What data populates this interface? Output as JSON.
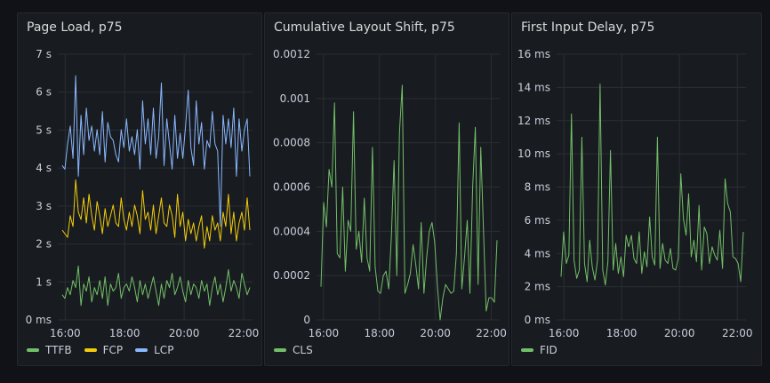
{
  "colors": {
    "TTFB": "#73bf69",
    "FCP": "#f2cc0c",
    "LCP": "#8ab8ff",
    "CLS": "#73bf69",
    "FID": "#73bf69"
  },
  "panels": [
    {
      "title": "Page Load, p75",
      "chart_data": {
        "type": "line",
        "x_tick_labels": [
          "16:00",
          "18:00",
          "20:00",
          "22:00"
        ],
        "x_ticks_hours": [
          16,
          18,
          20,
          22
        ],
        "xlim_hours": [
          15.75,
          22.3
        ],
        "y_tick_labels": [
          "0 ms",
          "1 s",
          "2 s",
          "3 s",
          "4 s",
          "5 s",
          "6 s",
          "7 s"
        ],
        "ylim": [
          0,
          7.4
        ],
        "y_unit": "s",
        "grid": true,
        "legend_position": "bottom-left",
        "series": [
          {
            "name": "TTFB",
            "color_key": "TTFB",
            "values": [
              0.7,
              0.6,
              0.9,
              0.7,
              1.1,
              0.9,
              1.5,
              0.4,
              1.0,
              0.8,
              1.2,
              0.5,
              0.9,
              0.7,
              1.1,
              0.6,
              1.2,
              0.4,
              1.0,
              0.8,
              0.9,
              1.3,
              0.6,
              0.9,
              1.0,
              0.8,
              1.2,
              0.9,
              0.5,
              1.1,
              0.7,
              1.0,
              0.6,
              0.9,
              1.2,
              0.8,
              0.4,
              1.0,
              0.6,
              1.1,
              0.9,
              1.3,
              0.7,
              0.9,
              1.2,
              0.8,
              0.5,
              1.1,
              0.7,
              1.0,
              0.9,
              0.6,
              1.1,
              0.8,
              1.0,
              0.4,
              0.9,
              1.2,
              0.7,
              1.0,
              0.5,
              0.9,
              1.4,
              0.8,
              1.1,
              0.9,
              0.6,
              1.3,
              1.0,
              0.7,
              0.9
            ]
          },
          {
            "name": "FCP",
            "color_key": "FCP",
            "values": [
              2.5,
              2.4,
              2.3,
              2.9,
              2.6,
              3.9,
              3.0,
              2.8,
              3.4,
              2.7,
              3.5,
              2.9,
              2.5,
              3.3,
              2.9,
              2.4,
              3.1,
              2.6,
              2.9,
              3.2,
              2.7,
              2.6,
              3.4,
              2.8,
              2.5,
              3.0,
              2.6,
              3.2,
              2.9,
              2.4,
              3.6,
              2.8,
              3.0,
              2.5,
              3.2,
              2.4,
              2.9,
              3.4,
              2.7,
              2.6,
              3.2,
              2.9,
              2.3,
              3.5,
              2.6,
              3.0,
              2.2,
              2.8,
              2.4,
              2.7,
              2.2,
              2.6,
              2.9,
              2.0,
              2.6,
              2.2,
              2.9,
              2.5,
              2.7,
              2.2,
              3.0,
              2.6,
              3.5,
              2.4,
              3.0,
              2.2,
              2.7,
              3.0,
              2.5,
              3.4,
              2.5
            ]
          },
          {
            "name": "LCP",
            "color_key": "LCP",
            "values": [
              4.3,
              4.2,
              4.9,
              5.4,
              4.5,
              6.8,
              4.0,
              5.7,
              4.6,
              5.9,
              5.0,
              5.4,
              4.7,
              5.3,
              4.6,
              5.8,
              4.4,
              5.5,
              5.1,
              5.0,
              4.6,
              4.4,
              5.3,
              4.8,
              5.6,
              4.7,
              5.1,
              4.6,
              5.3,
              4.2,
              6.1,
              4.9,
              5.6,
              4.6,
              5.9,
              4.5,
              5.1,
              6.6,
              4.3,
              5.6,
              4.9,
              4.2,
              5.7,
              4.5,
              5.2,
              4.5,
              5.4,
              6.4,
              4.8,
              4.3,
              6.1,
              4.9,
              5.5,
              4.2,
              5.0,
              4.8,
              5.8,
              4.9,
              4.7,
              2.6,
              5.7,
              4.9,
              5.6,
              4.8,
              5.9,
              4.0,
              5.6,
              4.7,
              5.3,
              5.6,
              4.0
            ]
          }
        ]
      }
    },
    {
      "title": "Cumulative Layout Shift, p75",
      "chart_data": {
        "type": "line",
        "x_tick_labels": [
          "16:00",
          "18:00",
          "20:00",
          "22:00"
        ],
        "x_ticks_hours": [
          16,
          18,
          20,
          22
        ],
        "xlim_hours": [
          15.75,
          22.3
        ],
        "y_tick_labels": [
          "0",
          "0.0002",
          "0.0004",
          "0.0006",
          "0.0008",
          "0.001",
          "0.0012"
        ],
        "ylim": [
          0,
          0.0012
        ],
        "grid": true,
        "legend_position": "bottom-left",
        "series": [
          {
            "name": "CLS",
            "color_key": "CLS",
            "values": [
              0.00015,
              0.00053,
              0.00042,
              0.00068,
              0.0006,
              0.00098,
              0.0003,
              0.00028,
              0.0006,
              0.00022,
              0.00045,
              0.0004,
              0.00094,
              0.00032,
              0.0004,
              0.00026,
              0.00055,
              0.00028,
              0.00022,
              0.00078,
              0.00024,
              0.00013,
              0.00012,
              0.0002,
              0.00022,
              0.00014,
              0.00038,
              0.00072,
              0.0002,
              0.00085,
              0.00106,
              0.00012,
              0.00016,
              0.00021,
              0.00034,
              0.00025,
              0.00014,
              0.00044,
              0.00012,
              0.00028,
              0.0004,
              0.00044,
              0.00035,
              0.00015,
              0.0,
              0.0001,
              0.00016,
              0.00014,
              0.00012,
              0.00013,
              0.0003,
              0.00089,
              0.00014,
              0.00028,
              0.00045,
              0.00012,
              0.0006,
              0.00087,
              0.00016,
              0.00078,
              0.0004,
              4e-05,
              0.0001,
              0.0001,
              8e-05,
              0.00036
            ]
          }
        ]
      }
    },
    {
      "title": "First Input Delay, p75",
      "chart_data": {
        "type": "line",
        "x_tick_labels": [
          "16:00",
          "18:00",
          "20:00",
          "22:00"
        ],
        "x_ticks_hours": [
          16,
          18,
          20,
          22
        ],
        "xlim_hours": [
          15.75,
          22.3
        ],
        "y_tick_labels": [
          "0 ms",
          "2 ms",
          "4 ms",
          "6 ms",
          "8 ms",
          "10 ms",
          "12 ms",
          "14 ms",
          "16 ms"
        ],
        "ylim": [
          0,
          16
        ],
        "y_unit": "ms",
        "grid": true,
        "legend_position": "bottom-left",
        "series": [
          {
            "name": "FID",
            "color_key": "FID",
            "values": [
              2.6,
              5.3,
              3.4,
              3.9,
              12.4,
              3.6,
              2.5,
              3.0,
              11.0,
              3.4,
              2.3,
              4.8,
              3.2,
              2.4,
              3.6,
              14.2,
              3.0,
              2.1,
              3.5,
              10.2,
              3.0,
              4.6,
              2.8,
              3.8,
              2.6,
              5.1,
              4.4,
              5.1,
              3.7,
              3.4,
              5.3,
              2.8,
              4.1,
              3.2,
              6.2,
              3.8,
              3.3,
              11.0,
              3.1,
              4.6,
              3.6,
              3.4,
              4.3,
              3.1,
              3.0,
              3.7,
              8.8,
              6.1,
              5.1,
              7.6,
              3.8,
              4.8,
              3.5,
              6.9,
              3.0,
              5.6,
              5.2,
              3.4,
              4.4,
              3.9,
              3.6,
              5.4,
              3.1,
              8.5,
              7.0,
              6.5,
              3.8,
              3.7,
              3.4,
              2.3,
              5.3
            ]
          }
        ]
      }
    }
  ]
}
